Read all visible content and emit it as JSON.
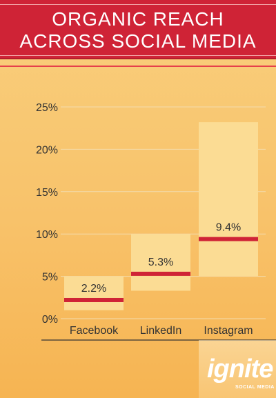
{
  "header": {
    "title_line1": "ORGANIC REACH",
    "title_line2": "ACROSS SOCIAL MEDIA"
  },
  "chart_data": {
    "type": "bar",
    "title": "ORGANIC REACH ACROSS SOCIAL MEDIA",
    "categories": [
      "Facebook",
      "LinkedIn",
      "Instagram"
    ],
    "ranges": [
      [
        1,
        5
      ],
      [
        3.3,
        10
      ],
      [
        5,
        23.2
      ]
    ],
    "values": [
      2.2,
      5.3,
      9.4
    ],
    "value_labels": [
      "2.2%",
      "5.3%",
      "9.4%"
    ],
    "ylim": [
      0,
      25
    ],
    "yticks": [
      0,
      5,
      10,
      15,
      20,
      25
    ],
    "ytick_labels": [
      "0%",
      "5%",
      "10%",
      "15%",
      "20%",
      "25%"
    ],
    "grid": true,
    "colors": {
      "range_fill": "#fbdc94",
      "median": "#cf2336",
      "text": "#333333",
      "grid": "#f3dcae"
    }
  },
  "logo": {
    "word": "ignite",
    "sub": "SOCIAL MEDIA"
  }
}
